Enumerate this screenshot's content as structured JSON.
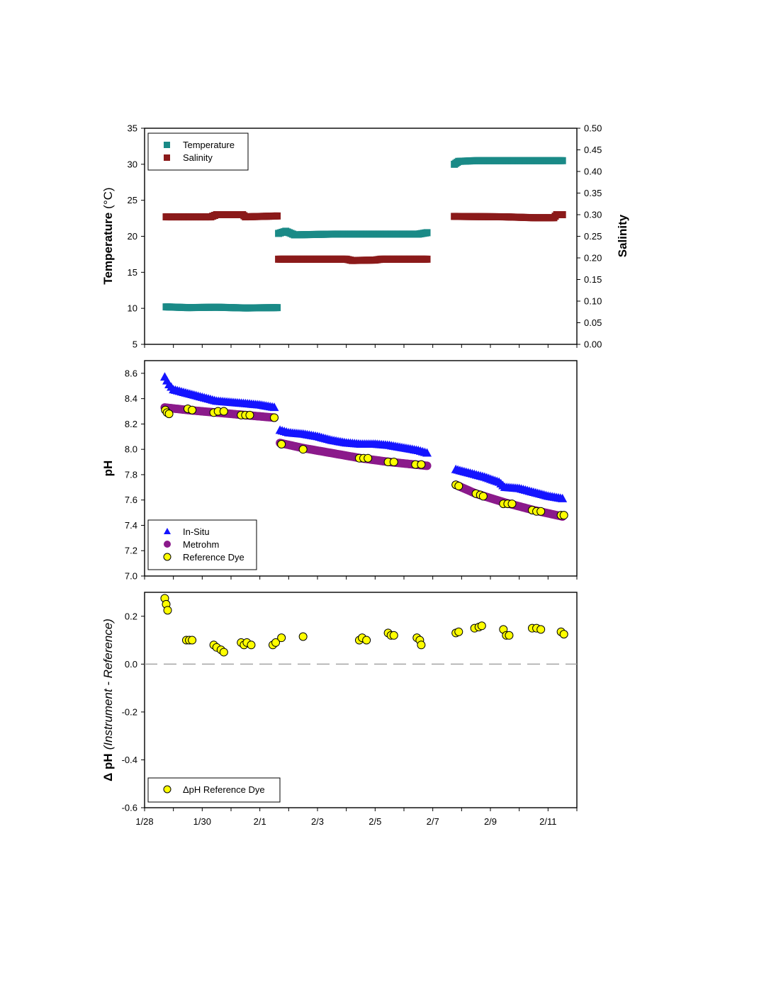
{
  "chart_data": [
    {
      "type": "scatter",
      "ylabel": "Temperature",
      "ylabel_unit": "(°C)",
      "y2label": "Salinity",
      "ylim": [
        5,
        35
      ],
      "y2lim": [
        0,
        0.5
      ],
      "yticks": [
        "5",
        "10",
        "15",
        "20",
        "25",
        "30",
        "35"
      ],
      "y2ticks": [
        "0.00",
        "0.05",
        "0.10",
        "0.15",
        "0.20",
        "0.25",
        "0.30",
        "0.35",
        "0.40",
        "0.45",
        "0.50"
      ],
      "legend": "top-left",
      "series": [
        {
          "name": "Temperature",
          "axis": "left",
          "color": "#1a8a87",
          "marker": "square",
          "segments": [
            {
              "x_start": 0.75,
              "x_end": 4.6,
              "points": [
                [
                  0.75,
                  10.2
                ],
                [
                  1.5,
                  10.1
                ],
                [
                  2.5,
                  10.15
                ],
                [
                  3.5,
                  10.05
                ],
                [
                  4.6,
                  10.1
                ]
              ]
            },
            {
              "x_start": 4.65,
              "x_end": 9.8,
              "points": [
                [
                  4.65,
                  20.4
                ],
                [
                  4.9,
                  20.7
                ],
                [
                  5.2,
                  20.2
                ],
                [
                  6.5,
                  20.3
                ],
                [
                  8.0,
                  20.3
                ],
                [
                  9.5,
                  20.3
                ],
                [
                  9.8,
                  20.5
                ]
              ]
            },
            {
              "x_start": 10.75,
              "x_end": 14.5,
              "points": [
                [
                  10.75,
                  30.0
                ],
                [
                  10.9,
                  30.4
                ],
                [
                  11.5,
                  30.5
                ],
                [
                  13.0,
                  30.5
                ],
                [
                  14.5,
                  30.5
                ]
              ]
            }
          ]
        },
        {
          "name": "Salinity",
          "axis": "right",
          "color": "#8b1a1a",
          "marker": "square",
          "segments": [
            {
              "x_start": 0.75,
              "x_end": 4.6,
              "points": [
                [
                  0.75,
                  0.295
                ],
                [
                  2.3,
                  0.295
                ],
                [
                  2.5,
                  0.3
                ],
                [
                  3.4,
                  0.3
                ],
                [
                  3.5,
                  0.295
                ],
                [
                  4.6,
                  0.297
                ]
              ]
            },
            {
              "x_start": 4.65,
              "x_end": 9.8,
              "points": [
                [
                  4.65,
                  0.197
                ],
                [
                  7.0,
                  0.197
                ],
                [
                  7.2,
                  0.194
                ],
                [
                  8.0,
                  0.195
                ],
                [
                  8.2,
                  0.197
                ],
                [
                  9.8,
                  0.197
                ]
              ]
            },
            {
              "x_start": 10.75,
              "x_end": 14.5,
              "points": [
                [
                  10.75,
                  0.296
                ],
                [
                  12.5,
                  0.295
                ],
                [
                  13.5,
                  0.293
                ],
                [
                  14.2,
                  0.293
                ],
                [
                  14.3,
                  0.3
                ],
                [
                  14.5,
                  0.3
                ]
              ]
            }
          ]
        }
      ]
    },
    {
      "type": "scatter",
      "ylabel": "pH",
      "ylim": [
        7.0,
        8.7
      ],
      "yticks": [
        "7.0",
        "7.2",
        "7.4",
        "7.6",
        "7.8",
        "8.0",
        "8.2",
        "8.4",
        "8.6"
      ],
      "legend": "bottom-left",
      "series": [
        {
          "name": "In-Situ",
          "color": "#1414ff",
          "marker": "triangle",
          "segments": [
            {
              "points": [
                [
                  0.7,
                  8.57
                ],
                [
                  0.85,
                  8.51
                ],
                [
                  1.0,
                  8.47
                ],
                [
                  1.5,
                  8.44
                ],
                [
                  2.0,
                  8.41
                ],
                [
                  2.5,
                  8.38
                ],
                [
                  3.0,
                  8.37
                ],
                [
                  3.5,
                  8.36
                ],
                [
                  4.0,
                  8.35
                ],
                [
                  4.5,
                  8.33
                ]
              ]
            },
            {
              "points": [
                [
                  4.7,
                  8.15
                ],
                [
                  5.0,
                  8.13
                ],
                [
                  5.5,
                  8.12
                ],
                [
                  6.0,
                  8.1
                ],
                [
                  6.5,
                  8.07
                ],
                [
                  7.0,
                  8.05
                ],
                [
                  7.5,
                  8.04
                ],
                [
                  8.0,
                  8.04
                ],
                [
                  8.5,
                  8.03
                ],
                [
                  9.0,
                  8.01
                ],
                [
                  9.5,
                  7.99
                ],
                [
                  9.8,
                  7.97
                ]
              ]
            },
            {
              "points": [
                [
                  10.8,
                  7.84
                ],
                [
                  11.3,
                  7.81
                ],
                [
                  11.8,
                  7.78
                ],
                [
                  12.3,
                  7.74
                ],
                [
                  12.5,
                  7.7
                ],
                [
                  13.0,
                  7.69
                ],
                [
                  13.5,
                  7.66
                ],
                [
                  14.0,
                  7.63
                ],
                [
                  14.5,
                  7.61
                ]
              ]
            }
          ]
        },
        {
          "name": "Metrohm",
          "color": "#8b1a8b",
          "marker": "circle",
          "segments": [
            {
              "points": [
                [
                  0.7,
                  8.33
                ],
                [
                  1.5,
                  8.31
                ],
                [
                  2.5,
                  8.29
                ],
                [
                  3.5,
                  8.27
                ],
                [
                  4.5,
                  8.25
                ]
              ]
            },
            {
              "points": [
                [
                  4.7,
                  8.05
                ],
                [
                  5.5,
                  8.01
                ],
                [
                  6.5,
                  7.97
                ],
                [
                  7.5,
                  7.93
                ],
                [
                  8.5,
                  7.9
                ],
                [
                  9.8,
                  7.87
                ]
              ]
            },
            {
              "points": [
                [
                  10.8,
                  7.72
                ],
                [
                  11.5,
                  7.65
                ],
                [
                  12.5,
                  7.58
                ],
                [
                  13.5,
                  7.52
                ],
                [
                  14.5,
                  7.47
                ]
              ]
            }
          ]
        },
        {
          "name": "Reference Dye",
          "color": "#ffff00",
          "marker": "circle",
          "points": [
            [
              0.72,
              8.31
            ],
            [
              0.78,
              8.29
            ],
            [
              0.85,
              8.28
            ],
            [
              1.5,
              8.32
            ],
            [
              1.65,
              8.31
            ],
            [
              2.4,
              8.29
            ],
            [
              2.55,
              8.3
            ],
            [
              2.75,
              8.3
            ],
            [
              3.35,
              8.27
            ],
            [
              3.5,
              8.27
            ],
            [
              3.65,
              8.27
            ],
            [
              4.5,
              8.25
            ],
            [
              4.75,
              8.04
            ],
            [
              5.5,
              8.0
            ],
            [
              7.45,
              7.93
            ],
            [
              7.6,
              7.93
            ],
            [
              7.75,
              7.93
            ],
            [
              8.45,
              7.9
            ],
            [
              8.65,
              7.9
            ],
            [
              9.4,
              7.88
            ],
            [
              9.6,
              7.88
            ],
            [
              10.8,
              7.72
            ],
            [
              10.9,
              7.71
            ],
            [
              11.5,
              7.65
            ],
            [
              11.65,
              7.64
            ],
            [
              11.75,
              7.63
            ],
            [
              12.45,
              7.57
            ],
            [
              12.6,
              7.57
            ],
            [
              12.75,
              7.57
            ],
            [
              13.45,
              7.52
            ],
            [
              13.6,
              7.51
            ],
            [
              13.75,
              7.51
            ],
            [
              14.45,
              7.48
            ],
            [
              14.55,
              7.48
            ]
          ]
        }
      ]
    },
    {
      "type": "scatter",
      "ylabel_prefix": "Δ pH",
      "ylabel_italic": "(Instrument - Reference)",
      "ylim": [
        -0.6,
        0.3
      ],
      "yticks": [
        "-0.6",
        "-0.4",
        "-0.2",
        "0.0",
        "0.2"
      ],
      "xticks": [
        "1/28",
        "1/30",
        "2/1",
        "2/3",
        "2/5",
        "2/7",
        "2/9",
        "2/11"
      ],
      "xlim": [
        0,
        15
      ],
      "reference_line": {
        "y": 0,
        "style": "dashed",
        "color": "#a0a0a0"
      },
      "legend": "bottom-left",
      "series": [
        {
          "name": "ΔpH Reference Dye",
          "color": "#ffff00",
          "marker": "circle",
          "points": [
            [
              0.7,
              0.275
            ],
            [
              0.75,
              0.25
            ],
            [
              0.8,
              0.225
            ],
            [
              1.45,
              0.1
            ],
            [
              1.55,
              0.1
            ],
            [
              1.65,
              0.1
            ],
            [
              2.4,
              0.08
            ],
            [
              2.5,
              0.07
            ],
            [
              2.65,
              0.06
            ],
            [
              2.75,
              0.05
            ],
            [
              3.35,
              0.09
            ],
            [
              3.45,
              0.08
            ],
            [
              3.55,
              0.09
            ],
            [
              3.7,
              0.08
            ],
            [
              4.45,
              0.08
            ],
            [
              4.55,
              0.09
            ],
            [
              4.75,
              0.11
            ],
            [
              5.5,
              0.115
            ],
            [
              7.45,
              0.1
            ],
            [
              7.55,
              0.11
            ],
            [
              7.7,
              0.1
            ],
            [
              8.45,
              0.13
            ],
            [
              8.55,
              0.12
            ],
            [
              8.65,
              0.12
            ],
            [
              9.45,
              0.11
            ],
            [
              9.55,
              0.1
            ],
            [
              9.6,
              0.08
            ],
            [
              10.8,
              0.13
            ],
            [
              10.9,
              0.135
            ],
            [
              11.45,
              0.15
            ],
            [
              11.6,
              0.155
            ],
            [
              11.7,
              0.16
            ],
            [
              12.45,
              0.145
            ],
            [
              12.55,
              0.12
            ],
            [
              12.65,
              0.12
            ],
            [
              13.45,
              0.15
            ],
            [
              13.6,
              0.15
            ],
            [
              13.75,
              0.145
            ],
            [
              14.45,
              0.135
            ],
            [
              14.55,
              0.125
            ]
          ]
        }
      ]
    }
  ]
}
